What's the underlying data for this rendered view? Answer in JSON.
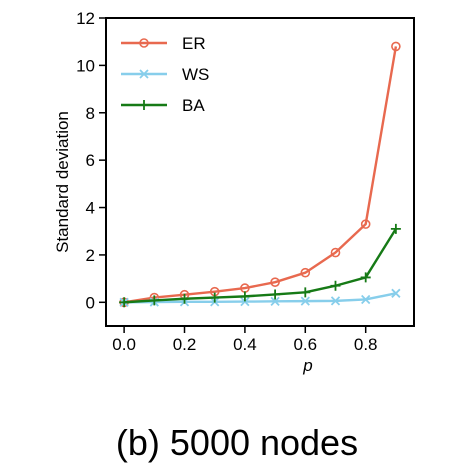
{
  "caption": "(b) 5000 nodes",
  "chart_data": {
    "type": "line",
    "xlabel": "p",
    "ylabel": "Standard deviation",
    "xlim": [
      -0.06,
      0.96
    ],
    "ylim": [
      -1,
      12
    ],
    "xticks": [
      0.0,
      0.2,
      0.4,
      0.6,
      0.8
    ],
    "xtick_labels": [
      "0.0",
      "0.2",
      "0.4",
      "0.6",
      "0.8"
    ],
    "yticks": [
      0,
      2,
      4,
      6,
      8,
      10,
      12
    ],
    "ytick_labels": [
      "0",
      "2",
      "4",
      "6",
      "8",
      "10",
      "12"
    ],
    "grid": false,
    "legend_position": "top-left",
    "x": [
      0.0,
      0.1,
      0.2,
      0.3,
      0.4,
      0.5,
      0.6,
      0.7,
      0.8,
      0.9
    ],
    "series": [
      {
        "name": "ER",
        "color": "#e8694f",
        "marker": "circle",
        "values": [
          0.0,
          0.2,
          0.32,
          0.45,
          0.6,
          0.85,
          1.25,
          2.1,
          3.3,
          10.8
        ]
      },
      {
        "name": "WS",
        "color": "#87ceeb",
        "marker": "x",
        "values": [
          0.0,
          0.01,
          0.02,
          0.02,
          0.03,
          0.04,
          0.05,
          0.06,
          0.12,
          0.38
        ]
      },
      {
        "name": "BA",
        "color": "#167a16",
        "marker": "plus",
        "values": [
          0.0,
          0.08,
          0.15,
          0.2,
          0.25,
          0.33,
          0.42,
          0.7,
          1.05,
          3.1
        ]
      }
    ]
  }
}
